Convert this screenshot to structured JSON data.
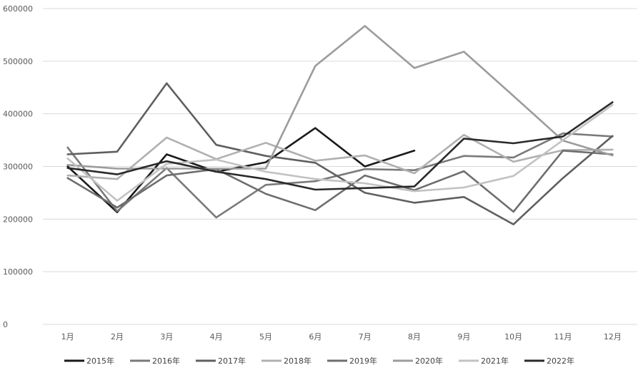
{
  "chart_data": {
    "type": "line",
    "title": "",
    "xlabel": "",
    "ylabel": "",
    "categories": [
      "1月",
      "2月",
      "3月",
      "4月",
      "5月",
      "6月",
      "7月",
      "8月",
      "9月",
      "10月",
      "11月",
      "12月"
    ],
    "ylim": [
      0,
      600000
    ],
    "yticks": [
      0,
      100000,
      200000,
      300000,
      400000,
      500000,
      600000
    ],
    "grid": true,
    "legend": "bottom",
    "series": [
      {
        "name": "2015年",
        "color": "#1a1a1a",
        "values": [
          300000,
          213000,
          323000,
          290000,
          308000,
          373000,
          300000,
          330000,
          null,
          null,
          null,
          null
        ]
      },
      {
        "name": "2016年",
        "color": "#7a7a7a",
        "values": [
          336000,
          215000,
          297000,
          203000,
          265000,
          272000,
          295000,
          293000,
          320000,
          317000,
          363000,
          357000
        ]
      },
      {
        "name": "2017年",
        "color": "#5f5f5f",
        "values": [
          323000,
          328000,
          458000,
          341000,
          320000,
          307000,
          250000,
          231000,
          242000,
          190000,
          278000,
          358000
        ]
      },
      {
        "name": "2018年",
        "color": "#b0b0b0",
        "values": [
          283000,
          276000,
          355000,
          314000,
          345000,
          311000,
          321000,
          287000,
          360000,
          309000,
          331000,
          332000
        ]
      },
      {
        "name": "2019年",
        "color": "#6e6e6e",
        "values": [
          278000,
          222000,
          283000,
          295000,
          248000,
          217000,
          283000,
          255000,
          291000,
          214000,
          330000,
          323000
        ]
      },
      {
        "name": "2020年",
        "color": "#9c9c9c",
        "values": [
          303000,
          296000,
          296000,
          296000,
          296000,
          491000,
          567000,
          487000,
          518000,
          434000,
          349000,
          321000
        ]
      },
      {
        "name": "2021年",
        "color": "#c2c2c2",
        "values": [
          315000,
          235000,
          305000,
          313000,
          290000,
          276000,
          268000,
          253000,
          260000,
          282000,
          350000,
          417000
        ]
      },
      {
        "name": "2022年",
        "color": "#2a2a2a",
        "values": [
          297000,
          285000,
          310000,
          290000,
          276000,
          256000,
          259000,
          262000,
          353000,
          344000,
          357000,
          422000
        ]
      }
    ]
  }
}
